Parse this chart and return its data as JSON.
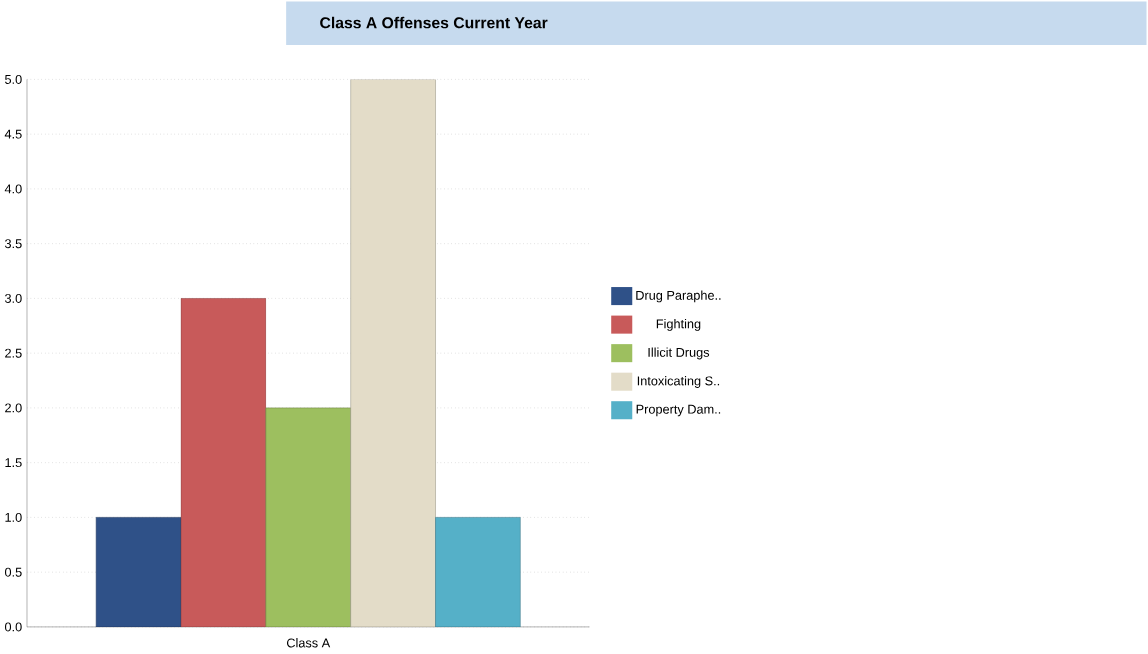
{
  "chart_data": {
    "type": "bar",
    "title": "Class A Offenses Current Year",
    "categories": [
      "Class A"
    ],
    "series": [
      {
        "name": "Drug Paraphe..",
        "color": "#2f5188",
        "values": [
          1
        ]
      },
      {
        "name": "Fighting",
        "color": "#c85a5a",
        "values": [
          3
        ]
      },
      {
        "name": "Illicit Drugs",
        "color": "#9dbf5f",
        "values": [
          2
        ]
      },
      {
        "name": "Intoxicating S..",
        "color": "#e3dcc8",
        "values": [
          5
        ]
      },
      {
        "name": "Property Dam..",
        "color": "#55b0c8",
        "values": [
          1
        ]
      }
    ],
    "ylim": [
      0,
      5
    ],
    "yticks": [
      {
        "value": 0,
        "label": "0.0"
      },
      {
        "value": 0.5,
        "label": "0.5"
      },
      {
        "value": 1,
        "label": "1.0"
      },
      {
        "value": 1.5,
        "label": "1.5"
      },
      {
        "value": 2,
        "label": "2.0"
      },
      {
        "value": 2.5,
        "label": "2.5"
      },
      {
        "value": 3,
        "label": "3.0"
      },
      {
        "value": 3.5,
        "label": "3.5"
      },
      {
        "value": 4,
        "label": "4.0"
      },
      {
        "value": 4.5,
        "label": "4.5"
      },
      {
        "value": 5,
        "label": "5.0"
      }
    ],
    "grid": "y",
    "legend": "right"
  }
}
